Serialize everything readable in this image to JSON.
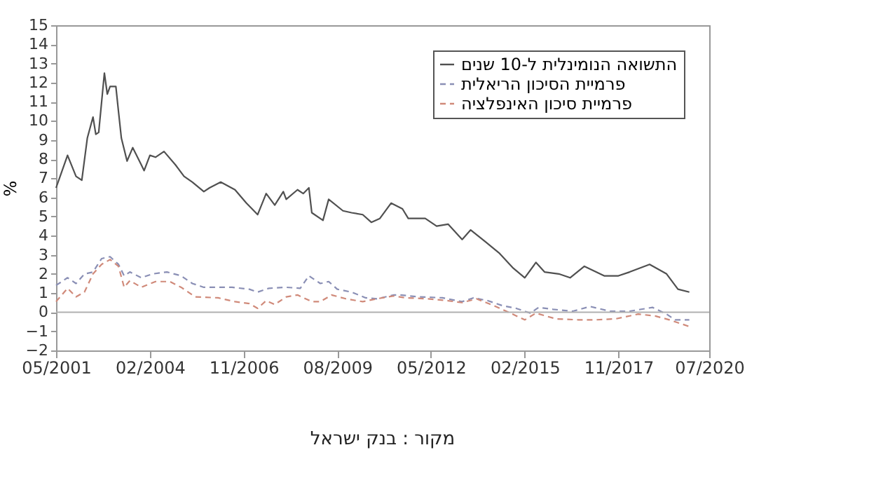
{
  "chart_data": {
    "type": "line",
    "ylabel": "%",
    "legend": "top right",
    "grid": false,
    "xlim": [
      "2001-05",
      "2020-07"
    ],
    "xticks": [
      {
        "value": "2001-05",
        "label": "05/2001"
      },
      {
        "value": "2004-02",
        "label": "02/2004"
      },
      {
        "value": "2006-11",
        "label": "11/2006"
      },
      {
        "value": "2009-08",
        "label": "08/2009"
      },
      {
        "value": "2012-05",
        "label": "05/2012"
      },
      {
        "value": "2015-02",
        "label": "02/2015"
      },
      {
        "value": "2017-11",
        "label": "11/2017"
      },
      {
        "value": "2020-07",
        "label": "07/2020"
      }
    ],
    "ylim": [
      -2,
      15
    ],
    "yticks": [
      -2,
      -1,
      0,
      1,
      2,
      3,
      4,
      5,
      6,
      7,
      8,
      9,
      10,
      11,
      12,
      13,
      14,
      15
    ],
    "ref_lines": [
      {
        "axis": "y",
        "value": 0,
        "color": "#b0b0b0"
      }
    ],
    "annotations": [
      "מקור : בנק ישראל"
    ],
    "series": [
      {
        "name": "התשואה הנומינלית ל-10 שנים",
        "color": "#505050",
        "line_style": "solid",
        "x": [
          "2001-05",
          "2001-09",
          "2001-12",
          "2002-02",
          "2002-04",
          "2002-06",
          "2002-07",
          "2002-08",
          "2002-10",
          "2002-11",
          "2002-12",
          "2003-02",
          "2003-03",
          "2003-04",
          "2003-06",
          "2003-08",
          "2003-11",
          "2003-12",
          "2004-02",
          "2004-04",
          "2004-07",
          "2004-11",
          "2005-02",
          "2005-05",
          "2005-09",
          "2005-11",
          "2006-03",
          "2006-08",
          "2006-12",
          "2007-04",
          "2007-07",
          "2007-10",
          "2008-01",
          "2008-02",
          "2008-06",
          "2008-08",
          "2008-10",
          "2008-11",
          "2009-03",
          "2009-05",
          "2009-10",
          "2010-01",
          "2010-05",
          "2010-08",
          "2010-11",
          "2011-03",
          "2011-07",
          "2011-09",
          "2012-03",
          "2012-07",
          "2012-11",
          "2013-04",
          "2013-07",
          "2013-12",
          "2014-05",
          "2014-10",
          "2015-02",
          "2015-06",
          "2015-09",
          "2016-02",
          "2016-06",
          "2016-11",
          "2017-06",
          "2017-11",
          "2018-03",
          "2018-10",
          "2019-04",
          "2019-08",
          "2019-12"
        ],
        "values": [
          6.5,
          8.2,
          7.1,
          6.9,
          9.1,
          10.2,
          9.3,
          9.4,
          12.5,
          11.4,
          11.8,
          11.8,
          10.5,
          9.1,
          7.9,
          8.6,
          7.7,
          7.4,
          8.2,
          8.1,
          8.4,
          7.7,
          7.1,
          6.8,
          6.3,
          6.5,
          6.8,
          6.4,
          5.7,
          5.1,
          6.2,
          5.6,
          6.3,
          5.9,
          6.4,
          6.2,
          6.5,
          5.2,
          4.8,
          5.9,
          5.3,
          5.2,
          5.1,
          4.7,
          4.9,
          5.7,
          5.4,
          4.9,
          4.9,
          4.5,
          4.6,
          3.8,
          4.3,
          3.7,
          3.1,
          2.3,
          1.8,
          2.6,
          2.1,
          2.0,
          1.8,
          2.4,
          1.9,
          1.9,
          2.1,
          2.5,
          2.0,
          1.2,
          1.05
        ]
      },
      {
        "name": "פרמיית הסיכון הריאלית",
        "color": "#8a8fb5",
        "line_style": "dashed",
        "x": [
          "2001-05",
          "2001-09",
          "2001-12",
          "2002-03",
          "2002-06",
          "2002-09",
          "2002-12",
          "2003-03",
          "2003-05",
          "2003-07",
          "2003-11",
          "2004-03",
          "2004-08",
          "2005-01",
          "2005-05",
          "2005-09",
          "2006-07",
          "2007-01",
          "2007-04",
          "2007-08",
          "2008-02",
          "2008-07",
          "2008-10",
          "2009-02",
          "2009-05",
          "2009-08",
          "2010-01",
          "2010-06",
          "2010-10",
          "2011-04",
          "2011-06",
          "2012-01",
          "2012-09",
          "2013-04",
          "2013-08",
          "2014-01",
          "2014-06",
          "2014-11",
          "2015-04",
          "2015-07",
          "2015-12",
          "2016-07",
          "2017-01",
          "2017-08",
          "2018-03",
          "2018-11",
          "2019-04",
          "2019-07",
          "2019-12"
        ],
        "values": [
          1.4,
          1.8,
          1.5,
          2.0,
          2.1,
          2.8,
          2.9,
          2.5,
          1.9,
          2.1,
          1.8,
          2.0,
          2.1,
          1.9,
          1.5,
          1.3,
          1.3,
          1.2,
          1.05,
          1.25,
          1.3,
          1.25,
          1.9,
          1.5,
          1.6,
          1.2,
          1.05,
          0.75,
          0.7,
          0.9,
          0.9,
          0.8,
          0.75,
          0.55,
          0.75,
          0.6,
          0.35,
          0.2,
          -0.05,
          0.25,
          0.15,
          0.05,
          0.3,
          0.05,
          0.05,
          0.25,
          -0.1,
          -0.4,
          -0.4
        ]
      },
      {
        "name": "פרמיית סיכון האינפלציה",
        "color": "#d08a7a",
        "line_style": "dashed",
        "x": [
          "2001-05",
          "2001-09",
          "2001-12",
          "2002-03",
          "2002-06",
          "2002-09",
          "2002-12",
          "2003-03",
          "2003-05",
          "2003-07",
          "2003-11",
          "2004-04",
          "2004-09",
          "2005-01",
          "2005-06",
          "2006-02",
          "2006-08",
          "2007-01",
          "2007-04",
          "2007-07",
          "2007-10",
          "2008-02",
          "2008-06",
          "2008-11",
          "2009-02",
          "2009-06",
          "2009-11",
          "2010-05",
          "2010-10",
          "2011-04",
          "2011-08",
          "2012-04",
          "2012-11",
          "2013-04",
          "2013-09",
          "2014-03",
          "2014-09",
          "2015-02",
          "2015-06",
          "2016-01",
          "2016-09",
          "2017-03",
          "2017-10",
          "2018-06",
          "2018-12",
          "2019-05",
          "2019-12"
        ],
        "values": [
          0.55,
          1.25,
          0.8,
          1.05,
          2.0,
          2.5,
          2.75,
          2.4,
          1.3,
          1.65,
          1.3,
          1.6,
          1.6,
          1.3,
          0.8,
          0.75,
          0.55,
          0.45,
          0.2,
          0.6,
          0.4,
          0.8,
          0.9,
          0.55,
          0.55,
          0.9,
          0.7,
          0.55,
          0.7,
          0.85,
          0.75,
          0.7,
          0.6,
          0.5,
          0.7,
          0.35,
          -0.05,
          -0.4,
          -0.05,
          -0.35,
          -0.4,
          -0.4,
          -0.35,
          -0.1,
          -0.2,
          -0.4,
          -0.75
        ]
      }
    ]
  }
}
